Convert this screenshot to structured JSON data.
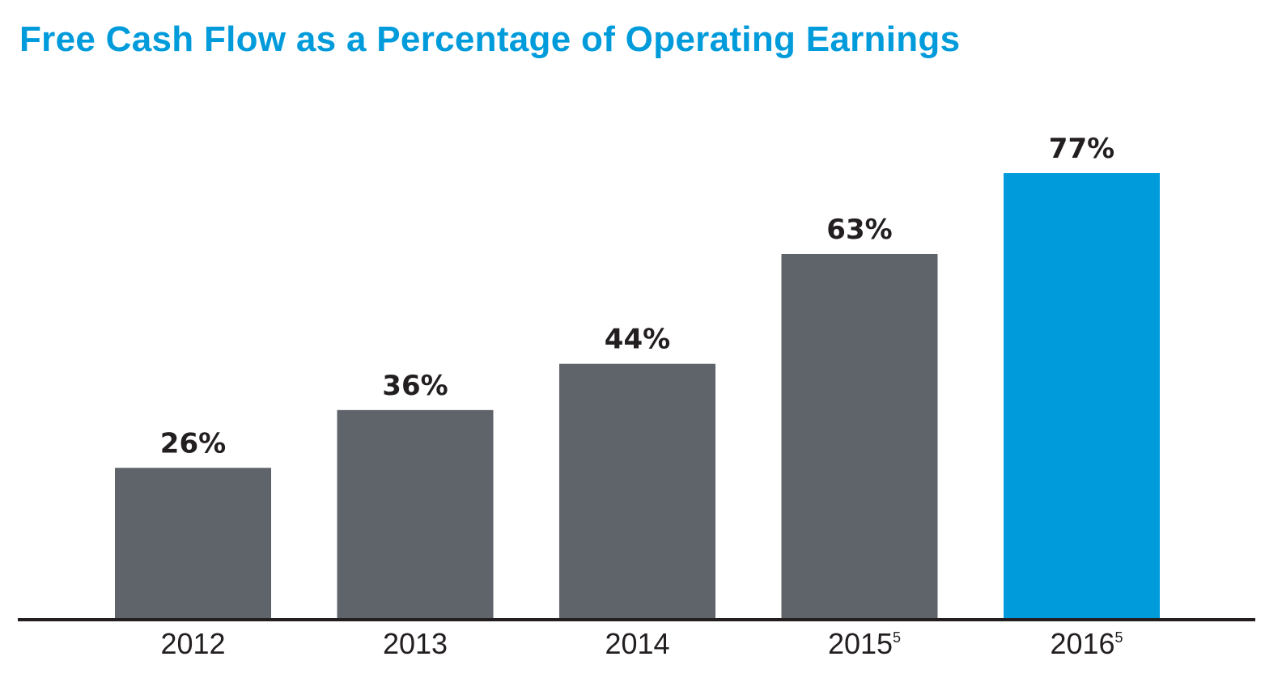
{
  "chart_data": {
    "type": "bar",
    "title": "Free Cash Flow as a Percentage of Operating Earnings",
    "categories": [
      "2012",
      "2013",
      "2014",
      "2015",
      "2016"
    ],
    "category_footnotes": [
      "",
      "",
      "",
      "5",
      "5"
    ],
    "values": [
      26,
      36,
      44,
      63,
      77
    ],
    "data_labels": [
      "26%",
      "36%",
      "44%",
      "63%",
      "77%"
    ],
    "unit": "%",
    "xlabel": "",
    "ylabel": "",
    "ylim": [
      0,
      77
    ],
    "grid": false,
    "legend": "none",
    "colors": {
      "bar": "#5f636a",
      "highlight_bar": "#009bdb",
      "title": "#009bdb",
      "axis": "#231f20"
    },
    "highlight_index": 4
  }
}
